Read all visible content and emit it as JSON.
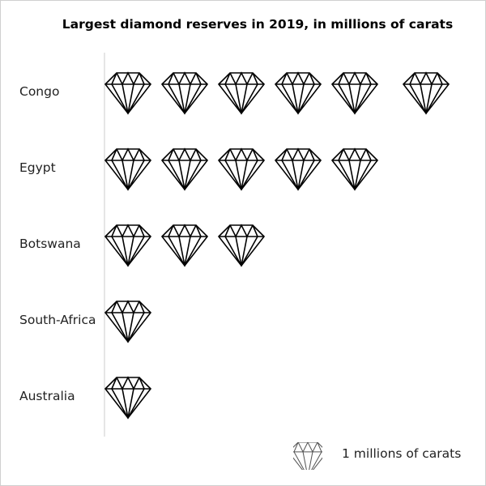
{
  "chart_data": {
    "type": "pictograph",
    "title": "Largest diamond reserves in 2019, in millions of carats",
    "categories": [
      "Congo",
      "Egypt",
      "Botswana",
      "South-Africa",
      "Australia"
    ],
    "values": [
      6,
      5,
      3,
      1,
      1
    ],
    "icon": "diamond-icon",
    "unit_value": 1,
    "legend": {
      "label": "1 millions of carats",
      "placement": "bottom-right"
    },
    "grid": false,
    "colors": {
      "stroke": "#000000",
      "axis": "#cccccc"
    }
  }
}
